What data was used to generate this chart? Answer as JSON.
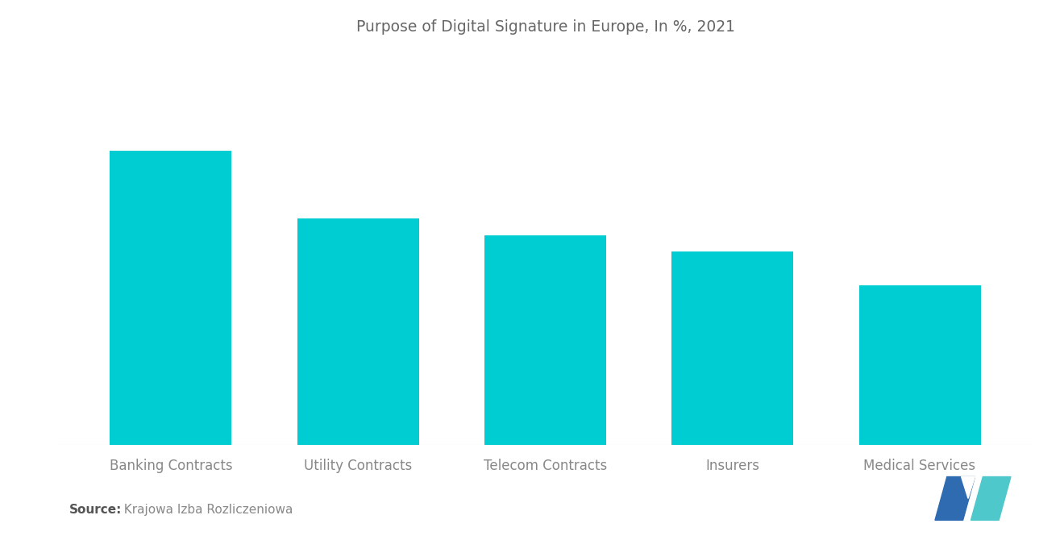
{
  "title": "Purpose of Digital Signature in Europe, In %, 2021",
  "categories": [
    "Banking Contracts",
    "Utility Contracts",
    "Telecom Contracts",
    "Insurers",
    "Medical Services"
  ],
  "values": [
    35,
    27,
    25,
    23,
    19
  ],
  "bar_color": "#00CDD1",
  "background_color": "#ffffff",
  "title_color": "#666666",
  "label_color": "#888888",
  "title_fontsize": 13.5,
  "label_fontsize": 12,
  "source_bold": "Source:",
  "source_rest": "  Krajowa Izba Rozliczeniowa",
  "source_fontsize": 11,
  "bar_width": 0.65,
  "ylim_factor": 1.35,
  "logo_left_color": "#2E6BB0",
  "logo_right_color": "#4FC8CB"
}
